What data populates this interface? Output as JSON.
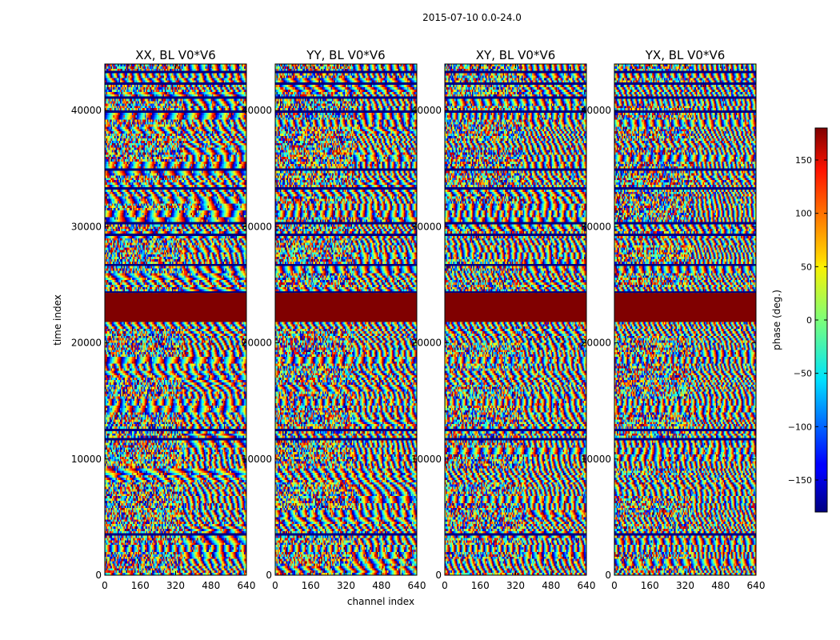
{
  "chart_data": {
    "type": "heatmap",
    "suptitle": "2015-07-10 0.0-24.0",
    "xlabel": "channel index",
    "ylabel": "time index",
    "x_range": [
      0,
      640
    ],
    "y_range": [
      0,
      44000
    ],
    "x_ticks": [
      0,
      160,
      320,
      480,
      640
    ],
    "y_ticks": [
      0,
      10000,
      20000,
      30000,
      40000
    ],
    "panels": [
      {
        "title": "XX, BL V0*V6",
        "polarization": "XX"
      },
      {
        "title": "YY, BL V0*V6",
        "polarization": "YY"
      },
      {
        "title": "XY, BL V0*V6",
        "polarization": "XY"
      },
      {
        "title": "YX, BL V0*V6",
        "polarization": "YX"
      }
    ],
    "flagged_time_range": [
      21800,
      24300
    ],
    "flag_color": "#800000",
    "colorbar": {
      "label": "phase (deg.)",
      "range": [
        -180,
        180
      ],
      "ticks": [
        -150,
        -100,
        -50,
        0,
        50,
        100,
        150
      ],
      "colormap": "jet"
    }
  }
}
